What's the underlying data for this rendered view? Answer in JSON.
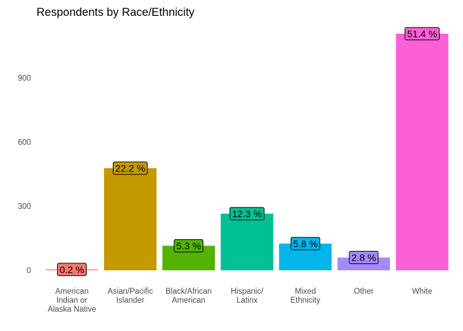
{
  "chart_data": {
    "type": "bar",
    "title": "Respondents by Race/Ethnicity",
    "xlabel": "",
    "ylabel": "",
    "ylim": [
      0,
      1150
    ],
    "yticks": [
      0,
      300,
      600,
      900
    ],
    "grid": false,
    "legend": "none",
    "categories": [
      "American Indian or Alaska Native",
      "Asian/Pacific Islander",
      "Black/African American",
      "Hispanic/ Latinx",
      "Mixed Ethnicity",
      "Other",
      "White"
    ],
    "category_lines": [
      [
        "American",
        "Indian or",
        "Alaska Native"
      ],
      [
        "Asian/Pacific",
        "Islander"
      ],
      [
        "Black/African",
        "American"
      ],
      [
        "Hispanic/",
        "Latinx"
      ],
      [
        "Mixed",
        "Ethnicity"
      ],
      [
        "Other"
      ],
      [
        "White"
      ]
    ],
    "values": [
      4,
      478,
      115,
      265,
      125,
      60,
      1107
    ],
    "labels": [
      "0.2 %",
      "22.2 %",
      "5.3 %",
      "12.3 %",
      "5.8 %",
      "2.8 %",
      "51.4 %"
    ],
    "colors": [
      "#F8766D",
      "#C49A00",
      "#53B400",
      "#00C094",
      "#00B6EB",
      "#A58AFF",
      "#FB61D7"
    ]
  }
}
